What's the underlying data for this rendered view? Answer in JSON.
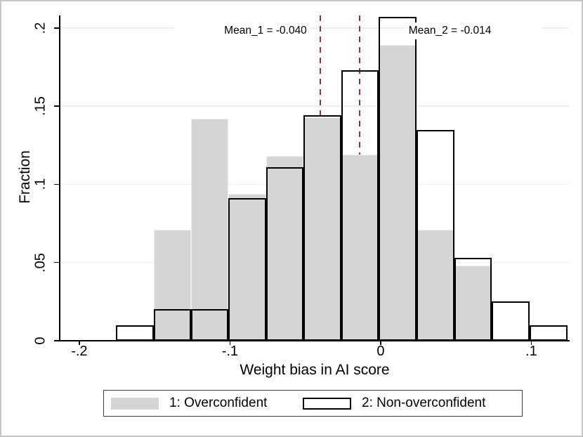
{
  "chart_data": {
    "type": "histogram",
    "title": "",
    "xlabel": "Weight bias in AI score",
    "ylabel": "Fraction",
    "xlim": [
      -0.213,
      0.125
    ],
    "ylim": [
      0,
      0.208
    ],
    "grid_on": true,
    "grid_color": "#e9f0ef",
    "x_ticks": [
      {
        "v": -0.2,
        "label": "-.2"
      },
      {
        "v": -0.1,
        "label": "-.1"
      },
      {
        "v": 0.0,
        "label": "0"
      },
      {
        "v": 0.1,
        "label": ".1"
      }
    ],
    "y_ticks": [
      {
        "v": 0.0,
        "label": "0"
      },
      {
        "v": 0.05,
        "label": ".05"
      },
      {
        "v": 0.1,
        "label": ".1"
      },
      {
        "v": 0.15,
        "label": ".15"
      },
      {
        "v": 0.2,
        "label": ".2"
      }
    ],
    "bin_edges": [
      -0.1756,
      -0.1504,
      -0.1258,
      -0.1011,
      -0.0759,
      -0.0512,
      -0.0261,
      -0.0014,
      0.0238,
      0.0489,
      0.0736,
      0.0987,
      0.1239
    ],
    "series": [
      {
        "name": "1: Overconfident",
        "style": "filled",
        "fill": "#d5d5d5",
        "edge": "#efefef",
        "values": [
          null,
          0.071,
          0.142,
          0.094,
          0.118,
          0.143,
          0.119,
          0.189,
          0.071,
          0.048,
          null,
          null
        ]
      },
      {
        "name": "2: Non-overconfident",
        "style": "hollow",
        "stroke": "#000000",
        "values": [
          0.01,
          0.02,
          0.02,
          0.091,
          0.111,
          0.144,
          0.173,
          0.207,
          0.135,
          0.053,
          0.025,
          0.01
        ]
      }
    ],
    "mean_lines": [
      {
        "label": "Mean_1 = -0.040",
        "x": -0.04,
        "y_top": 0.208,
        "y_bottom": 0.144,
        "color": "#9a3137",
        "label_x": -0.0764,
        "label_y": 0.198,
        "box_extend": "left"
      },
      {
        "label": "Mean_2 = -0.014",
        "x": -0.014,
        "y_top": 0.208,
        "y_bottom": 0.119,
        "color": "#9a3137",
        "label_x": 0.046,
        "label_y": 0.198,
        "box_extend": "right"
      }
    ],
    "legend": {
      "position": "bottom"
    }
  }
}
